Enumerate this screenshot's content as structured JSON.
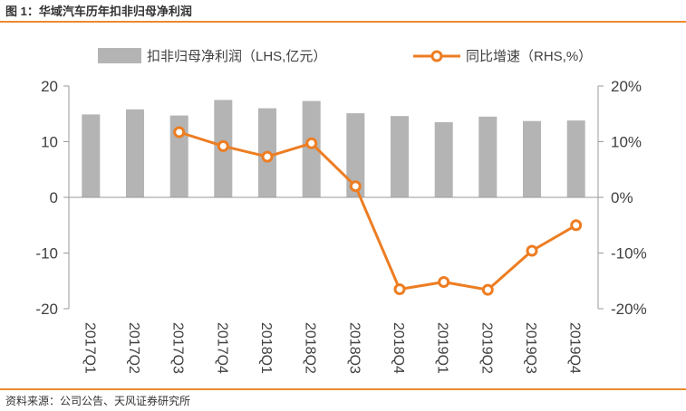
{
  "figure": {
    "title": "图 1：华域汽车历年扣非归母净利润",
    "source": "资料来源：公司公告、天风证券研究所"
  },
  "colors": {
    "bar": "#b4b4b4",
    "line": "#ed7d22",
    "axis": "#9a9a9a",
    "text": "#404040",
    "rule": "#ea8a2c"
  },
  "chart_data": {
    "type": "bar+line",
    "title": "华域汽车历年扣非归母净利润",
    "categories": [
      "2017Q1",
      "2017Q2",
      "2017Q3",
      "2017Q4",
      "2018Q1",
      "2018Q2",
      "2018Q3",
      "2018Q4",
      "2019Q1",
      "2019Q2",
      "2019Q3",
      "2019Q4"
    ],
    "series": [
      {
        "name": "扣非归母净利润（LHS,亿元）",
        "type": "bar",
        "axis": "left",
        "values": [
          14.9,
          15.8,
          14.7,
          17.5,
          16.0,
          17.3,
          15.1,
          14.6,
          13.5,
          14.5,
          13.7,
          13.8
        ]
      },
      {
        "name": "同比增速（RHS,%）",
        "type": "line",
        "axis": "right",
        "values": [
          null,
          null,
          11.7,
          9.2,
          7.3,
          9.7,
          2.0,
          -16.5,
          -15.2,
          -16.6,
          -9.6,
          -5.0
        ]
      }
    ],
    "left_axis": {
      "ylim": [
        -20,
        20
      ],
      "ticks": [
        20,
        10,
        0,
        -10,
        -20
      ],
      "tick_labels": [
        "20",
        "10",
        "0",
        "-10",
        "-20"
      ]
    },
    "right_axis": {
      "ylim": [
        -20,
        20
      ],
      "ticks": [
        20,
        10,
        0,
        -10,
        -20
      ],
      "tick_labels": [
        "20%",
        "10%",
        "0%",
        "-10%",
        "-20%"
      ]
    },
    "legend": [
      "扣非归母净利润（LHS,亿元）",
      "同比增速（RHS,%）"
    ],
    "legend_position": "top",
    "grid": false
  }
}
